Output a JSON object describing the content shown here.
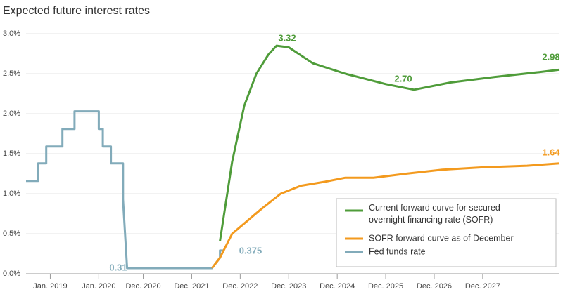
{
  "chart_data": {
    "type": "line",
    "title": "Expected future interest rates",
    "xlim": [
      "2018-07",
      "2029-07"
    ],
    "xticks": [
      {
        "value": "2019-01",
        "label": "Jan. 2019"
      },
      {
        "value": "2020-01",
        "label": "Jan. 2020"
      },
      {
        "value": "2020-12",
        "label": "Dec. 2020"
      },
      {
        "value": "2021-12",
        "label": "Dec. 2021"
      },
      {
        "value": "2022-12",
        "label": "Dec. 2022"
      },
      {
        "value": "2023-12",
        "label": "Dec. 2023"
      },
      {
        "value": "2024-12",
        "label": "Dec. 2024"
      },
      {
        "value": "2025-12",
        "label": "Dec. 2025"
      },
      {
        "value": "2026-12",
        "label": "Dec. 2026"
      },
      {
        "value": "2027-12",
        "label": "Dec. 2027"
      }
    ],
    "ylim": [
      0,
      3.0
    ],
    "yticks": [
      {
        "value": 0,
        "label": "0.0%"
      },
      {
        "value": 0.5,
        "label": "0.5%"
      },
      {
        "value": 1.0,
        "label": "1.0%"
      },
      {
        "value": 1.5,
        "label": "1.5%"
      },
      {
        "value": 2.0,
        "label": "2.0%"
      },
      {
        "value": 2.5,
        "label": "2.5%"
      },
      {
        "value": 3.0,
        "label": "3.0%"
      }
    ],
    "grid": true,
    "legend": "lower right",
    "series": [
      {
        "name": "Current forward curve for secured overnight financing rate (SOFR)",
        "color": "#4f9c3a",
        "x": [
          "2022-07",
          "2022-10",
          "2023-01",
          "2023-04",
          "2023-07",
          "2023-09",
          "2023-12",
          "2024-06",
          "2025-02",
          "2025-12",
          "2026-07",
          "2027-04",
          "2028-03",
          "2029-02",
          "2029-07"
        ],
        "values": [
          0.41,
          1.4,
          2.1,
          2.5,
          2.74,
          2.85,
          2.83,
          2.63,
          2.5,
          2.37,
          2.3,
          2.39,
          2.46,
          2.52,
          2.55
        ]
      },
      {
        "name": "SOFR forward curve as of December",
        "color": "#f39a1e",
        "x": [
          "2022-05",
          "2022-07",
          "2022-10",
          "2023-05",
          "2023-10",
          "2024-03",
          "2024-09",
          "2025-02",
          "2025-09",
          "2026-05",
          "2027-02",
          "2027-12",
          "2028-11",
          "2029-07"
        ],
        "values": [
          0.07,
          0.2,
          0.5,
          0.8,
          1.0,
          1.1,
          1.15,
          1.2,
          1.2,
          1.25,
          1.3,
          1.33,
          1.35,
          1.38
        ]
      },
      {
        "name": "Fed funds rate",
        "color": "#82abba",
        "x": [
          "2018-07",
          "2018-10",
          "2018-10",
          "2018-12",
          "2018-12",
          "2019-04",
          "2019-04",
          "2019-07",
          "2019-07",
          "2020-01",
          "2020-01",
          "2020-02",
          "2020-02",
          "2020-04",
          "2020-04",
          "2020-07",
          "2020-07",
          "2020-08",
          "2022-05",
          "2022-07",
          "2022-07",
          "2022-08"
        ],
        "values": [
          1.16,
          1.16,
          1.38,
          1.38,
          1.59,
          1.59,
          1.81,
          1.81,
          2.03,
          2.03,
          1.81,
          1.81,
          1.59,
          1.59,
          1.38,
          1.38,
          0.93,
          0.07,
          0.07,
          0.2,
          0.29,
          0.29
        ]
      }
    ],
    "annotations": [
      "3.32",
      "2.70",
      "2.98",
      "1.64",
      "0.31",
      "0.375"
    ]
  }
}
